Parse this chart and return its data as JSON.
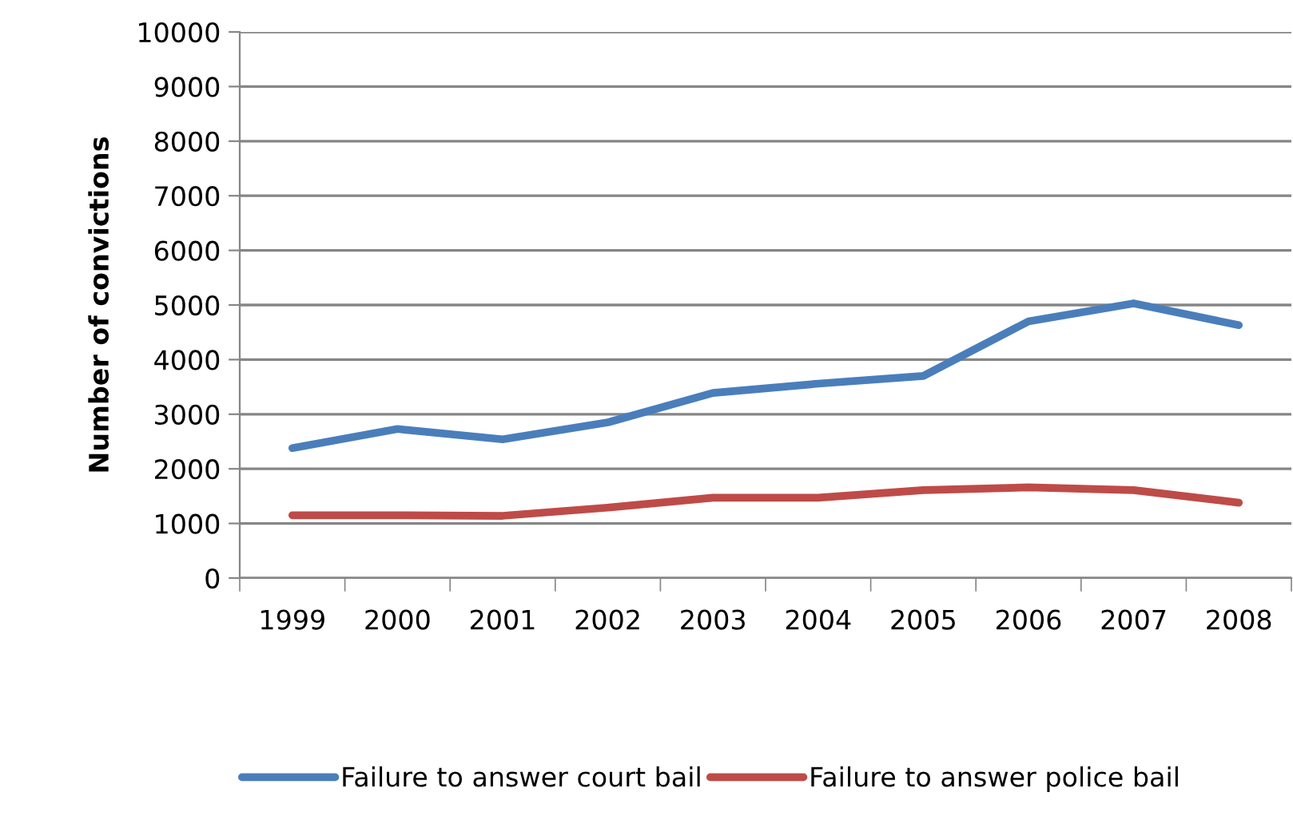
{
  "chart_data": {
    "type": "line",
    "ylabel": "Number of convictions",
    "categories": [
      "1999",
      "2000",
      "2001",
      "2002",
      "2003",
      "2004",
      "2005",
      "2006",
      "2007",
      "2008"
    ],
    "series": [
      {
        "name": "Failure to answer court bail",
        "color": "#4a7ebb",
        "values": [
          2380,
          2730,
          2540,
          2850,
          3390,
          3560,
          3700,
          4700,
          5030,
          4630
        ]
      },
      {
        "name": "Failure to answer police bail",
        "color": "#be4b48",
        "values": [
          1150,
          1150,
          1140,
          1290,
          1470,
          1470,
          1610,
          1660,
          1610,
          1380
        ]
      }
    ],
    "ylim": [
      0,
      10000
    ],
    "yticks": [
      0,
      1000,
      2000,
      3000,
      4000,
      5000,
      6000,
      7000,
      8000,
      9000,
      10000
    ],
    "grid": "y",
    "legend": "bottom",
    "marker": "none",
    "line_style": "solid"
  }
}
